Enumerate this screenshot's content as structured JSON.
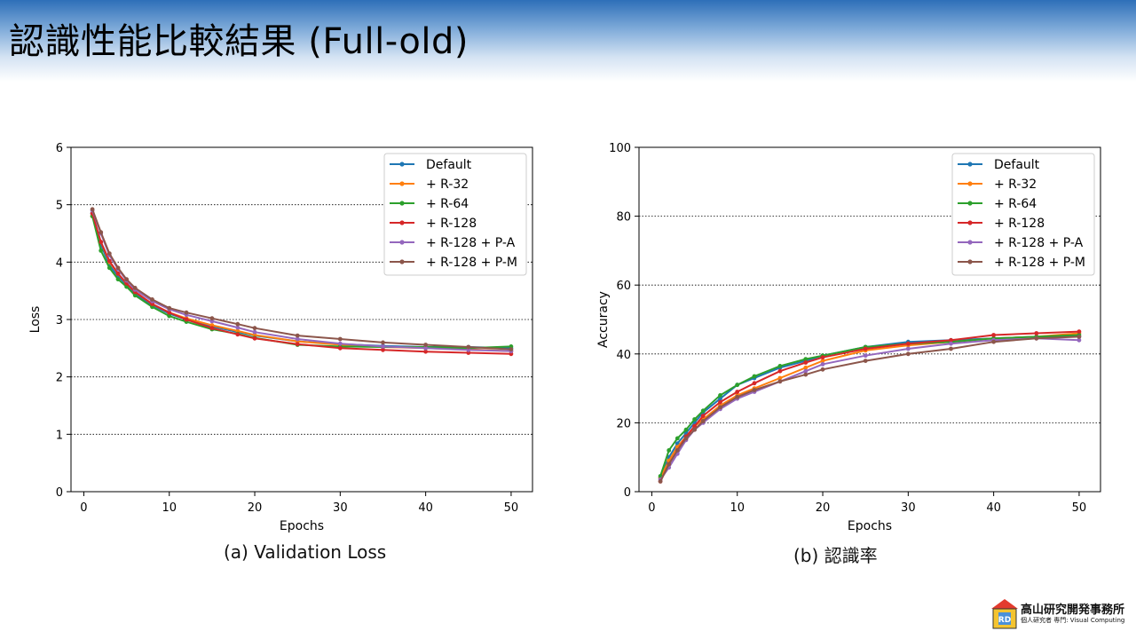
{
  "slide": {
    "title": "認識性能比較結果 (Full-old)",
    "caption_a": "(a) Validation Loss",
    "caption_b": "(b) 認識率",
    "logo_name": "高山研究開発事務所",
    "logo_sub": "個人研究者 専門: Visual Computing",
    "logo_letters": "R D"
  },
  "chart_data": [
    {
      "type": "line",
      "xlabel": "Epochs",
      "ylabel": "Loss",
      "xlim": [
        1,
        50
      ],
      "ylim": [
        0,
        6
      ],
      "xticks": [
        0,
        10,
        20,
        30,
        40,
        50
      ],
      "yticks": [
        0,
        1,
        2,
        3,
        4,
        5,
        6
      ],
      "grid": "y-dotted",
      "legend_position": "upper-right",
      "series_samples": "epochs 1,2,3,4,5,6,8,10,12,15,18,20,25,30,35,40,45,50",
      "series": [
        {
          "name": "Default",
          "color": "#1f77b4",
          "x": [
            1,
            2,
            3,
            4,
            5,
            6,
            8,
            10,
            12,
            15,
            18,
            20,
            25,
            30,
            35,
            40,
            45,
            50
          ],
          "values": [
            4.85,
            4.3,
            3.95,
            3.75,
            3.6,
            3.45,
            3.25,
            3.1,
            3.0,
            2.88,
            2.78,
            2.72,
            2.62,
            2.57,
            2.54,
            2.52,
            2.52,
            2.5
          ]
        },
        {
          "name": "+ R-32",
          "color": "#ff7f0e",
          "x": [
            1,
            2,
            3,
            4,
            5,
            6,
            8,
            10,
            12,
            15,
            18,
            20,
            25,
            30,
            35,
            40,
            45,
            50
          ],
          "values": [
            4.8,
            4.35,
            4.0,
            3.8,
            3.62,
            3.48,
            3.27,
            3.12,
            3.02,
            2.9,
            2.8,
            2.73,
            2.62,
            2.56,
            2.52,
            2.5,
            2.48,
            2.45
          ]
        },
        {
          "name": "+ R-64",
          "color": "#2ca02c",
          "x": [
            1,
            2,
            3,
            4,
            5,
            6,
            8,
            10,
            12,
            15,
            18,
            20,
            25,
            30,
            35,
            40,
            45,
            50
          ],
          "values": [
            4.8,
            4.2,
            3.9,
            3.7,
            3.57,
            3.42,
            3.22,
            3.06,
            2.96,
            2.83,
            2.75,
            2.68,
            2.56,
            2.53,
            2.52,
            2.52,
            2.5,
            2.53
          ]
        },
        {
          "name": "+ R-128",
          "color": "#d62728",
          "x": [
            1,
            2,
            3,
            4,
            5,
            6,
            8,
            10,
            12,
            15,
            18,
            20,
            25,
            30,
            35,
            40,
            45,
            50
          ],
          "values": [
            4.85,
            4.35,
            4.02,
            3.8,
            3.63,
            3.48,
            3.27,
            3.12,
            3.0,
            2.85,
            2.74,
            2.67,
            2.57,
            2.5,
            2.47,
            2.44,
            2.42,
            2.4
          ]
        },
        {
          "name": "+ R-128 + P-A",
          "color": "#9467bd",
          "x": [
            1,
            2,
            3,
            4,
            5,
            6,
            8,
            10,
            12,
            15,
            18,
            20,
            25,
            30,
            35,
            40,
            45,
            50
          ],
          "values": [
            4.9,
            4.5,
            4.12,
            3.88,
            3.68,
            3.52,
            3.32,
            3.18,
            3.08,
            2.97,
            2.86,
            2.78,
            2.66,
            2.58,
            2.53,
            2.5,
            2.47,
            2.45
          ]
        },
        {
          "name": "+ R-128 + P-M",
          "color": "#8c564b",
          "x": [
            1,
            2,
            3,
            4,
            5,
            6,
            8,
            10,
            12,
            15,
            18,
            20,
            25,
            30,
            35,
            40,
            45,
            50
          ],
          "values": [
            4.92,
            4.52,
            4.15,
            3.9,
            3.7,
            3.55,
            3.35,
            3.2,
            3.12,
            3.02,
            2.92,
            2.85,
            2.72,
            2.66,
            2.6,
            2.56,
            2.52,
            2.48
          ]
        }
      ]
    },
    {
      "type": "line",
      "xlabel": "Epochs",
      "ylabel": "Accuracy",
      "xlim": [
        1,
        50
      ],
      "ylim": [
        0,
        100
      ],
      "xticks": [
        0,
        10,
        20,
        30,
        40,
        50
      ],
      "yticks": [
        0,
        20,
        40,
        60,
        80,
        100
      ],
      "grid": "y-dotted",
      "legend_position": "upper-right",
      "series_samples": "epochs 1,2,3,4,5,6,8,10,12,15,18,20,25,30,35,40,45,50",
      "series": [
        {
          "name": "Default",
          "color": "#1f77b4",
          "x": [
            1,
            2,
            3,
            4,
            5,
            6,
            8,
            10,
            12,
            15,
            18,
            20,
            25,
            30,
            35,
            40,
            45,
            50
          ],
          "values": [
            4,
            10,
            14,
            17,
            20,
            23,
            27,
            31,
            33,
            36,
            38,
            39.5,
            42,
            43.5,
            44,
            44.5,
            45,
            45
          ]
        },
        {
          "name": "+ R-32",
          "color": "#ff7f0e",
          "x": [
            1,
            2,
            3,
            4,
            5,
            6,
            8,
            10,
            12,
            15,
            18,
            20,
            25,
            30,
            35,
            40,
            45,
            50
          ],
          "values": [
            4,
            9,
            13,
            16,
            19,
            21,
            25,
            28,
            30,
            33,
            36,
            38,
            41,
            42.5,
            43.5,
            44.5,
            45,
            46
          ]
        },
        {
          "name": "+ R-64",
          "color": "#2ca02c",
          "x": [
            1,
            2,
            3,
            4,
            5,
            6,
            8,
            10,
            12,
            15,
            18,
            20,
            25,
            30,
            35,
            40,
            45,
            50
          ],
          "values": [
            4.5,
            12,
            15.5,
            18,
            21,
            23.5,
            28,
            31,
            33.5,
            36.5,
            38.5,
            39.5,
            42,
            43,
            43.5,
            44.5,
            45,
            45.5
          ]
        },
        {
          "name": "+ R-128",
          "color": "#d62728",
          "x": [
            1,
            2,
            3,
            4,
            5,
            6,
            8,
            10,
            12,
            15,
            18,
            20,
            25,
            30,
            35,
            40,
            45,
            50
          ],
          "values": [
            3,
            8,
            12,
            16,
            19,
            22,
            26,
            29,
            31.5,
            35,
            37.5,
            39,
            41.5,
            43,
            44,
            45.5,
            46,
            46.5
          ]
        },
        {
          "name": "+ R-128 + P-A",
          "color": "#9467bd",
          "x": [
            1,
            2,
            3,
            4,
            5,
            6,
            8,
            10,
            12,
            15,
            18,
            20,
            25,
            30,
            35,
            40,
            45,
            50
          ],
          "values": [
            3.5,
            7,
            11,
            15,
            18,
            20,
            24,
            27,
            29,
            32,
            35,
            37,
            39.5,
            41.5,
            43,
            44,
            44.5,
            44
          ]
        },
        {
          "name": "+ R-128 + P-M",
          "color": "#8c564b",
          "x": [
            1,
            2,
            3,
            4,
            5,
            6,
            8,
            10,
            12,
            15,
            18,
            20,
            25,
            30,
            35,
            40,
            45,
            50
          ],
          "values": [
            3,
            8,
            12,
            15.5,
            18,
            20.5,
            24.5,
            27.5,
            29.5,
            32,
            34,
            35.5,
            38,
            40,
            41.5,
            43.5,
            44.5,
            45
          ]
        }
      ]
    }
  ]
}
